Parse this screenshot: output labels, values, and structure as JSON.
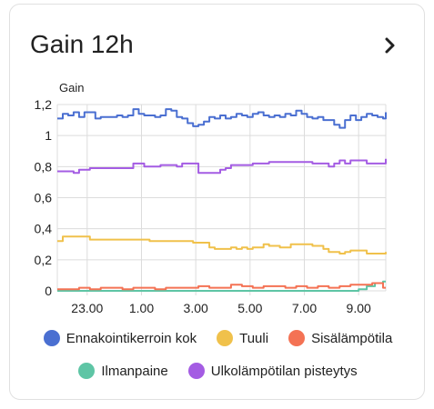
{
  "card": {
    "title": "Gain 12h"
  },
  "chart_data": {
    "type": "line",
    "ylabel": "Gain",
    "ylim": [
      0,
      1.2
    ],
    "yticks": [
      "0",
      "0,2",
      "0,4",
      "0,6",
      "0,8",
      "1",
      "1,2"
    ],
    "ytick_values": [
      0,
      0.2,
      0.4,
      0.6,
      0.8,
      1.0,
      1.2
    ],
    "xticks": [
      "23.00",
      "1.00",
      "3.00",
      "5.00",
      "7.00",
      "9.00"
    ],
    "xtick_hours": [
      23,
      25,
      27,
      29,
      31,
      33
    ],
    "xlim_hours": [
      21.9,
      34.0
    ],
    "series": [
      {
        "name": "Ennakointikerroin kok",
        "color": "#4a6fd1",
        "x": [
          21.9,
          22.1,
          22.3,
          22.5,
          22.7,
          22.9,
          23.1,
          23.3,
          23.5,
          23.7,
          23.9,
          24.1,
          24.3,
          24.5,
          24.7,
          24.9,
          25.1,
          25.3,
          25.5,
          25.7,
          25.9,
          26.1,
          26.3,
          26.5,
          26.7,
          26.9,
          27.1,
          27.3,
          27.5,
          27.7,
          27.9,
          28.1,
          28.3,
          28.5,
          28.7,
          28.9,
          29.1,
          29.3,
          29.5,
          29.7,
          29.9,
          30.1,
          30.3,
          30.5,
          30.7,
          30.9,
          31.1,
          31.3,
          31.5,
          31.7,
          31.9,
          32.1,
          32.3,
          32.5,
          32.7,
          32.9,
          33.1,
          33.3,
          33.5,
          33.7,
          33.9,
          34.0
        ],
        "y": [
          1.11,
          1.14,
          1.13,
          1.15,
          1.12,
          1.15,
          1.15,
          1.11,
          1.12,
          1.12,
          1.12,
          1.13,
          1.12,
          1.13,
          1.17,
          1.14,
          1.13,
          1.13,
          1.12,
          1.13,
          1.17,
          1.16,
          1.12,
          1.11,
          1.08,
          1.06,
          1.07,
          1.09,
          1.12,
          1.11,
          1.13,
          1.11,
          1.12,
          1.14,
          1.13,
          1.12,
          1.14,
          1.15,
          1.13,
          1.12,
          1.13,
          1.12,
          1.14,
          1.13,
          1.16,
          1.14,
          1.12,
          1.11,
          1.12,
          1.1,
          1.1,
          1.07,
          1.05,
          1.1,
          1.13,
          1.1,
          1.12,
          1.14,
          1.13,
          1.12,
          1.11,
          1.15
        ]
      },
      {
        "name": "Tuuli",
        "color": "#f0c14b",
        "x": [
          21.9,
          22.1,
          22.3,
          22.5,
          22.7,
          22.9,
          23.1,
          23.3,
          23.5,
          23.7,
          23.9,
          24.1,
          24.3,
          24.5,
          24.7,
          24.9,
          25.1,
          25.3,
          25.5,
          25.7,
          25.9,
          26.1,
          26.3,
          26.5,
          26.7,
          26.9,
          27.1,
          27.3,
          27.5,
          27.7,
          27.9,
          28.1,
          28.3,
          28.5,
          28.7,
          28.9,
          29.1,
          29.3,
          29.5,
          29.7,
          29.9,
          30.1,
          30.3,
          30.5,
          30.7,
          30.9,
          31.1,
          31.3,
          31.5,
          31.7,
          31.9,
          32.1,
          32.3,
          32.5,
          32.7,
          32.9,
          33.1,
          33.3,
          33.5,
          33.7,
          33.9,
          34.0
        ],
        "y": [
          0.32,
          0.35,
          0.35,
          0.35,
          0.35,
          0.35,
          0.33,
          0.33,
          0.33,
          0.33,
          0.33,
          0.33,
          0.33,
          0.33,
          0.33,
          0.33,
          0.33,
          0.32,
          0.32,
          0.32,
          0.32,
          0.32,
          0.32,
          0.32,
          0.32,
          0.31,
          0.31,
          0.31,
          0.28,
          0.27,
          0.27,
          0.27,
          0.28,
          0.27,
          0.28,
          0.27,
          0.28,
          0.28,
          0.3,
          0.29,
          0.29,
          0.28,
          0.28,
          0.3,
          0.3,
          0.3,
          0.3,
          0.29,
          0.29,
          0.27,
          0.25,
          0.25,
          0.24,
          0.25,
          0.26,
          0.26,
          0.26,
          0.24,
          0.24,
          0.24,
          0.24,
          0.25
        ]
      },
      {
        "name": "Sisälämpötila",
        "color": "#f47254",
        "x": [
          21.9,
          22.3,
          22.7,
          23.1,
          23.5,
          23.9,
          24.3,
          24.7,
          25.1,
          25.5,
          25.9,
          26.3,
          26.7,
          27.1,
          27.5,
          27.9,
          28.3,
          28.7,
          29.1,
          29.5,
          29.9,
          30.3,
          30.7,
          31.1,
          31.5,
          31.9,
          32.3,
          32.7,
          33.1,
          33.5,
          33.9,
          34.0
        ],
        "y": [
          0.01,
          0.01,
          0.02,
          0.01,
          0.02,
          0.02,
          0.01,
          0.02,
          0.02,
          0.01,
          0.02,
          0.02,
          0.02,
          0.03,
          0.02,
          0.02,
          0.04,
          0.03,
          0.02,
          0.03,
          0.03,
          0.02,
          0.03,
          0.02,
          0.03,
          0.02,
          0.03,
          0.04,
          0.04,
          0.05,
          0.02,
          0.02
        ]
      },
      {
        "name": "Ilmanpaine",
        "color": "#5ec5a5",
        "x": [
          21.9,
          23.0,
          24.0,
          25.0,
          26.0,
          27.0,
          28.0,
          29.0,
          30.0,
          31.0,
          31.8,
          32.2,
          32.6,
          33.0,
          33.3,
          33.6,
          33.9,
          34.0
        ],
        "y": [
          0.0,
          0.0,
          0.0,
          0.0,
          0.0,
          0.0,
          0.0,
          0.0,
          0.0,
          0.0,
          0.0,
          0.0,
          0.0,
          0.01,
          0.03,
          0.05,
          0.06,
          0.06
        ]
      },
      {
        "name": "Ulkolämpötilan pisteytys",
        "color": "#a45ce3",
        "x": [
          21.9,
          22.1,
          22.3,
          22.5,
          22.7,
          22.9,
          23.1,
          23.3,
          23.5,
          23.7,
          23.9,
          24.1,
          24.3,
          24.5,
          24.7,
          24.9,
          25.1,
          25.3,
          25.5,
          25.7,
          25.9,
          26.1,
          26.3,
          26.5,
          26.7,
          26.9,
          27.1,
          27.3,
          27.5,
          27.7,
          27.9,
          28.1,
          28.3,
          28.5,
          28.7,
          28.9,
          29.1,
          29.3,
          29.5,
          29.7,
          29.9,
          30.1,
          30.3,
          30.5,
          30.7,
          30.9,
          31.1,
          31.3,
          31.5,
          31.7,
          31.9,
          32.1,
          32.3,
          32.5,
          32.7,
          32.9,
          33.1,
          33.3,
          33.5,
          33.7,
          33.9,
          34.0
        ],
        "y": [
          0.77,
          0.77,
          0.77,
          0.76,
          0.78,
          0.78,
          0.79,
          0.79,
          0.79,
          0.79,
          0.79,
          0.79,
          0.79,
          0.79,
          0.82,
          0.82,
          0.8,
          0.8,
          0.8,
          0.81,
          0.81,
          0.81,
          0.8,
          0.82,
          0.82,
          0.82,
          0.76,
          0.76,
          0.76,
          0.76,
          0.78,
          0.79,
          0.81,
          0.81,
          0.81,
          0.81,
          0.82,
          0.82,
          0.82,
          0.83,
          0.83,
          0.83,
          0.83,
          0.83,
          0.83,
          0.83,
          0.83,
          0.82,
          0.82,
          0.82,
          0.8,
          0.82,
          0.84,
          0.82,
          0.84,
          0.84,
          0.84,
          0.82,
          0.82,
          0.82,
          0.82,
          0.85
        ]
      }
    ]
  }
}
